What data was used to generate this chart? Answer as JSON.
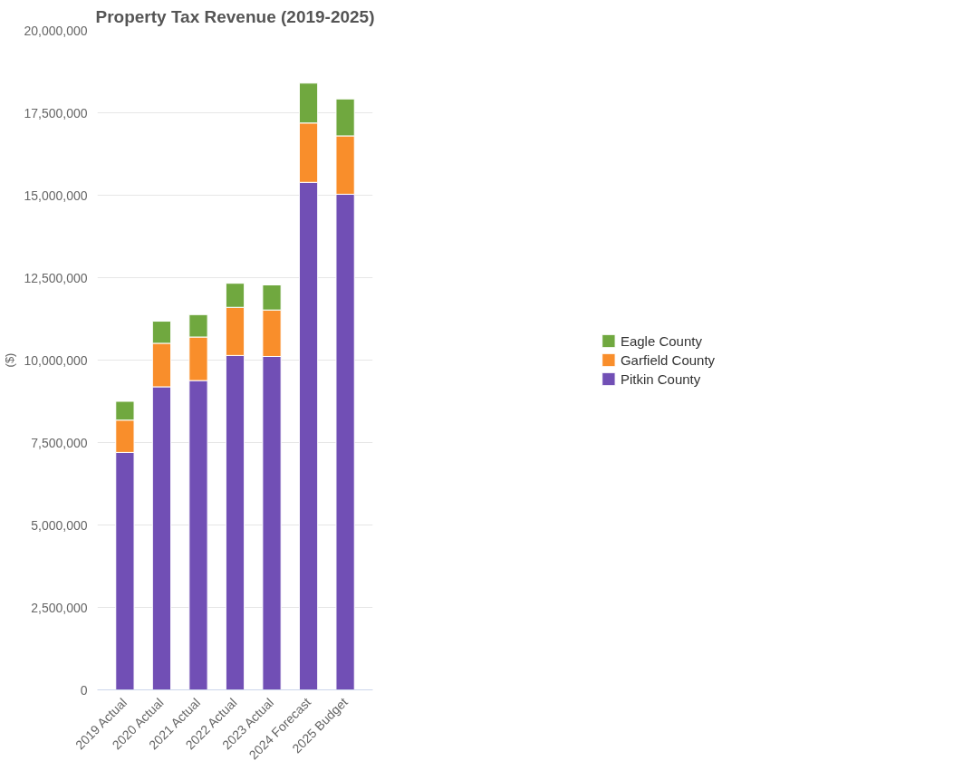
{
  "chart_data": {
    "type": "bar",
    "title": "Property Tax Revenue (2019-2025)",
    "ylabel": "($)",
    "categories": [
      "2019 Actual",
      "2020 Actual",
      "2021 Actual",
      "2022 Actual",
      "2023 Actual",
      "2024 Forecast",
      "2025 Budget"
    ],
    "stacked": true,
    "series": [
      {
        "name": "Pitkin County",
        "color": "#714fb5",
        "values": [
          7200000,
          9190000,
          9380000,
          10140000,
          10110000,
          15390000,
          15030000
        ]
      },
      {
        "name": "Garfield County",
        "color": "#f98e2b",
        "values": [
          980000,
          1320000,
          1320000,
          1460000,
          1410000,
          1800000,
          1770000
        ]
      },
      {
        "name": "Eagle County",
        "color": "#70a83f",
        "values": [
          570000,
          670000,
          680000,
          730000,
          760000,
          1210000,
          1120000
        ]
      }
    ],
    "ylim": [
      0,
      20000000
    ],
    "yticks": [
      {
        "value": 0,
        "label": "0"
      },
      {
        "value": 2500000,
        "label": "2,500,000"
      },
      {
        "value": 5000000,
        "label": "5,000,000"
      },
      {
        "value": 7500000,
        "label": "7,500,000"
      },
      {
        "value": 10000000,
        "label": "10,000,000"
      },
      {
        "value": 12500000,
        "label": "12,500,000"
      },
      {
        "value": 15000000,
        "label": "15,000,000"
      },
      {
        "value": 17500000,
        "label": "17,500,000"
      },
      {
        "value": 20000000,
        "label": "20,000,000"
      }
    ],
    "grid": "y",
    "legend": "right"
  }
}
